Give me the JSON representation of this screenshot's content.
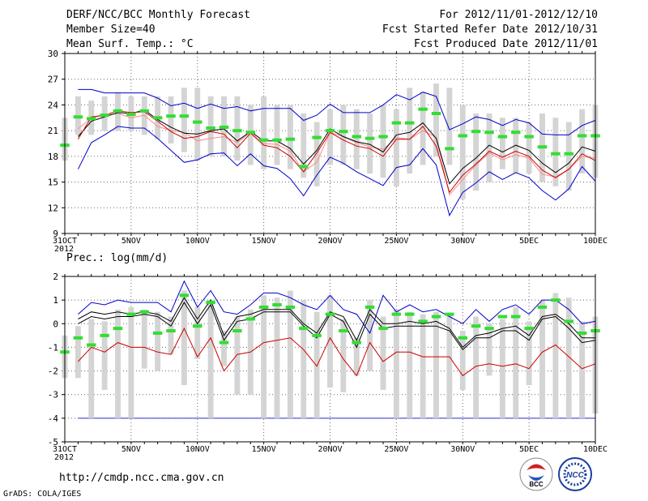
{
  "header": {
    "title": "DERF/NCC/BCC Monthly Forecast",
    "member_size": "Member Size=40",
    "variable": "Mean Surf. Temp.: °C",
    "period": "For 2012/11/01-2012/12/10",
    "fcst_started": "Fcst Started Refer Date 2012/10/31",
    "fcst_produced": "Fcst Produced Date 2012/11/01"
  },
  "footer": {
    "url": "http://cmdp.ncc.cma.gov.cn",
    "grads": "GrADS: COLA/IGES",
    "logo_bcc": "BCC",
    "logo_ncc": "NCC"
  },
  "colors": {
    "bar": "#d4d4d4",
    "mean": "#000000",
    "upper": "#0000cc",
    "lower": "#cc0000",
    "green": "#33dd33",
    "pink": "#ff8888"
  },
  "chart_data": [
    {
      "type": "line",
      "title": "Mean Surf. Temp.: °C",
      "ylim": [
        9,
        30
      ],
      "yticks": [
        9,
        12,
        15,
        18,
        21,
        24,
        27,
        30
      ],
      "xlabels": [
        {
          "i": 0,
          "text": "31OCT"
        },
        {
          "i": 5,
          "text": "5NOV"
        },
        {
          "i": 10,
          "text": "10NOV"
        },
        {
          "i": 15,
          "text": "15NOV"
        },
        {
          "i": 20,
          "text": "20NOV"
        },
        {
          "i": 25,
          "text": "25NOV"
        },
        {
          "i": 30,
          "text": "30NOV"
        },
        {
          "i": 35,
          "text": "5DEC"
        },
        {
          "i": 40,
          "text": "10DEC"
        }
      ],
      "year_label": "2012",
      "days": 41,
      "bars": [
        [
          17.5,
          22.5
        ],
        [
          20.5,
          25
        ],
        [
          20.5,
          24.5
        ],
        [
          21,
          25
        ],
        [
          21,
          25.5
        ],
        [
          21,
          25
        ],
        [
          20.5,
          25
        ],
        [
          20,
          25
        ],
        [
          19.5,
          25
        ],
        [
          18.5,
          26
        ],
        [
          17.5,
          26
        ],
        [
          18,
          25
        ],
        [
          18,
          25
        ],
        [
          17.5,
          25
        ],
        [
          17,
          24
        ],
        [
          16.5,
          25
        ],
        [
          17,
          24
        ],
        [
          16.5,
          24
        ],
        [
          15.5,
          23
        ],
        [
          14.5,
          22
        ],
        [
          17,
          23.5
        ],
        [
          17,
          24
        ],
        [
          16.5,
          23.5
        ],
        [
          16,
          23
        ],
        [
          15.5,
          24
        ],
        [
          14.5,
          23.5
        ],
        [
          16,
          26
        ],
        [
          17,
          25.5
        ],
        [
          18,
          26.5
        ],
        [
          17,
          26
        ],
        [
          13,
          24
        ],
        [
          14,
          23
        ],
        [
          15,
          23
        ],
        [
          16.5,
          22.5
        ],
        [
          16,
          22.5
        ],
        [
          16,
          22
        ],
        [
          15,
          23
        ],
        [
          14.5,
          22.5
        ],
        [
          14,
          22
        ],
        [
          16,
          23.5
        ],
        [
          15.5,
          24
        ]
      ],
      "series": [
        {
          "name": "upper",
          "values": [
            null,
            25.8,
            25.8,
            25.4,
            25.4,
            25.4,
            25.4,
            24.8,
            23.9,
            24.2,
            23.6,
            24.1,
            23.6,
            23.8,
            23.3,
            23.6,
            23.6,
            23.6,
            22.2,
            22.8,
            24.1,
            23.1,
            23.1,
            23.1,
            24.0,
            25.2,
            24.6,
            25.5,
            25.0,
            21.1,
            21.8,
            22.6,
            22.3,
            21.6,
            22.3,
            21.9,
            20.6,
            20.5,
            20.5,
            21.6,
            22.2
          ]
        },
        {
          "name": "pink",
          "values": [
            null,
            21.2,
            22.5,
            22.8,
            23.0,
            22.5,
            22.8,
            21.5,
            21.0,
            20.8,
            19.8,
            20.1,
            20.3,
            19.6,
            20.8,
            19.5,
            19.4,
            18.6,
            16.2,
            17.3,
            20.8,
            20.3,
            19.6,
            19.1,
            18.8,
            20.2,
            20.0,
            21.0,
            20.2,
            13.5,
            15.3,
            17.0,
            18.4,
            17.6,
            18.2,
            17.8,
            15.9,
            15.6,
            16.5,
            18.0,
            17.8
          ]
        },
        {
          "name": "mean",
          "values": [
            null,
            20.3,
            22.1,
            22.6,
            23.1,
            23.0,
            23.4,
            22.3,
            21.4,
            20.7,
            20.6,
            21.0,
            21.2,
            19.8,
            20.9,
            19.8,
            19.8,
            18.9,
            17.1,
            18.7,
            21.2,
            20.3,
            19.7,
            19.4,
            18.5,
            20.5,
            20.8,
            21.9,
            20.1,
            14.8,
            16.6,
            17.8,
            19.3,
            18.5,
            19.3,
            18.7,
            17.2,
            16.1,
            17.2,
            19.1,
            18.6
          ]
        },
        {
          "name": "red",
          "values": [
            null,
            20.0,
            22.6,
            22.8,
            23.3,
            23.1,
            23.2,
            22.1,
            20.9,
            20.1,
            20.3,
            20.9,
            20.6,
            19.0,
            20.7,
            19.3,
            19.0,
            18.0,
            16.2,
            18.4,
            20.8,
            19.9,
            19.2,
            18.9,
            18.0,
            20.0,
            20.0,
            21.5,
            19.2,
            13.8,
            15.8,
            17.1,
            18.6,
            17.9,
            18.6,
            18.0,
            16.4,
            15.5,
            16.5,
            18.3,
            17.5
          ]
        },
        {
          "name": "lower",
          "values": [
            null,
            16.5,
            19.6,
            20.5,
            21.5,
            21.3,
            21.3,
            20.1,
            18.7,
            17.3,
            17.6,
            18.3,
            18.4,
            16.9,
            18.3,
            16.9,
            16.6,
            15.4,
            13.4,
            15.8,
            17.9,
            17.2,
            16.2,
            15.4,
            14.6,
            16.7,
            17.0,
            18.9,
            17.0,
            11.1,
            13.8,
            14.9,
            16.2,
            15.3,
            16.1,
            15.5,
            14.0,
            12.9,
            14.2,
            16.8,
            15.1
          ]
        }
      ],
      "green": [
        19.3,
        22.6,
        22.4,
        22.8,
        23.3,
        22.9,
        23.3,
        22.5,
        22.7,
        22.7,
        22.0,
        21.3,
        21.4,
        21.0,
        20.8,
        19.9,
        19.9,
        20.0,
        16.8,
        20.2,
        21.0,
        20.9,
        20.3,
        20.1,
        20.3,
        21.9,
        21.9,
        23.5,
        23.0,
        18.9,
        20.4,
        20.9,
        20.8,
        20.3,
        20.8,
        20.3,
        19.1,
        18.3,
        18.3,
        20.4,
        20.4
      ]
    },
    {
      "type": "line",
      "title": "Prec.: log(mm/d)",
      "ylim": [
        -5,
        2
      ],
      "yticks": [
        -5,
        -4,
        -3,
        -2,
        -1,
        0,
        1,
        2
      ],
      "xlabels": [
        {
          "i": 0,
          "text": "31OCT"
        },
        {
          "i": 5,
          "text": "5NOV"
        },
        {
          "i": 10,
          "text": "10NOV"
        },
        {
          "i": 15,
          "text": "15NOV"
        },
        {
          "i": 20,
          "text": "20NOV"
        },
        {
          "i": 25,
          "text": "25NOV"
        },
        {
          "i": 30,
          "text": "30NOV"
        },
        {
          "i": 35,
          "text": "5DEC"
        },
        {
          "i": 40,
          "text": "10DEC"
        }
      ],
      "year_label": "2012",
      "days": 41,
      "floor": -4,
      "bars": [
        [
          -2.3,
          -0.5
        ],
        [
          -2.3,
          -0.1
        ],
        [
          -4,
          0.2
        ],
        [
          -2.8,
          0.1
        ],
        [
          -4,
          0.6
        ],
        [
          -4,
          0.7
        ],
        [
          -1.9,
          0.6
        ],
        [
          -2,
          0.5
        ],
        [
          -1.3,
          0.3
        ],
        [
          -2.6,
          1.4
        ],
        [
          -1.5,
          0.7
        ],
        [
          -4,
          1
        ],
        [
          -1.8,
          -0.3
        ],
        [
          -3,
          0.3
        ],
        [
          -3,
          0.6
        ],
        [
          -4,
          1.2
        ],
        [
          -4,
          1.1
        ],
        [
          -4,
          1.4
        ],
        [
          -4,
          1
        ],
        [
          -4,
          0.5
        ],
        [
          -2.7,
          1.2
        ],
        [
          -2.9,
          0.2
        ],
        [
          -2.2,
          -0.6
        ],
        [
          -2,
          1
        ],
        [
          -2.8,
          0.3
        ],
        [
          -4,
          0.6
        ],
        [
          -4,
          0.5
        ],
        [
          -4,
          0.4
        ],
        [
          -4,
          0.5
        ],
        [
          -4,
          0.4
        ],
        [
          -2.8,
          -0.3
        ],
        [
          -4,
          0.3
        ],
        [
          -2.2,
          0
        ],
        [
          -4,
          0.2
        ],
        [
          -4,
          0.7
        ],
        [
          -2.6,
          0.1
        ],
        [
          -4,
          1
        ],
        [
          -4,
          1.3
        ],
        [
          -4,
          1.1
        ],
        [
          -4,
          0.1
        ],
        [
          -3.8,
          0.3
        ]
      ],
      "series": [
        {
          "name": "upper",
          "values": [
            null,
            0.4,
            0.9,
            0.8,
            1.0,
            0.9,
            0.9,
            0.9,
            0.5,
            1.8,
            0.7,
            1.4,
            0.5,
            0.4,
            0.8,
            1.3,
            1.3,
            1.1,
            0.8,
            0.6,
            1.2,
            0.6,
            0.4,
            -0.4,
            1.2,
            0.5,
            0.8,
            0.5,
            0.6,
            0.3,
            0.0,
            0.6,
            0.1,
            0.6,
            0.8,
            0.4,
            1.0,
            1.0,
            0.6,
            0.0,
            0.1
          ]
        },
        {
          "name": "mean",
          "values": [
            null,
            0.2,
            0.5,
            0.4,
            0.5,
            0.4,
            0.5,
            0.4,
            0.1,
            1.1,
            0.2,
            1.0,
            -0.5,
            0.3,
            0.4,
            0.6,
            0.6,
            0.6,
            0.0,
            -0.4,
            0.5,
            0.3,
            -0.7,
            0.6,
            0.0,
            0.0,
            0.1,
            0.0,
            0.1,
            -0.2,
            -1.0,
            -0.5,
            -0.4,
            -0.2,
            -0.1,
            -0.5,
            0.3,
            0.4,
            0.0,
            -0.6,
            -0.6
          ]
        },
        {
          "name": "black2",
          "values": [
            null,
            0.0,
            0.3,
            0.2,
            0.3,
            0.3,
            0.4,
            0.3,
            -0.1,
            0.9,
            0.0,
            0.8,
            -0.7,
            0.1,
            0.2,
            0.5,
            0.5,
            0.5,
            -0.1,
            -0.6,
            0.4,
            0.1,
            -1.0,
            0.4,
            -0.2,
            -0.1,
            -0.1,
            -0.1,
            -0.1,
            -0.3,
            -1.1,
            -0.6,
            -0.6,
            -0.3,
            -0.3,
            -0.7,
            0.2,
            0.3,
            -0.2,
            -0.8,
            -0.7
          ]
        },
        {
          "name": "red",
          "values": [
            null,
            -1.6,
            -1.0,
            -1.2,
            -0.8,
            -1.0,
            -1.0,
            -1.2,
            -1.3,
            -0.2,
            -1.4,
            -0.6,
            -2.0,
            -1.3,
            -1.2,
            -0.8,
            -0.7,
            -0.6,
            -1.1,
            -1.8,
            -0.6,
            -1.5,
            -2.2,
            -0.8,
            -1.6,
            -1.2,
            -1.2,
            -1.4,
            -1.4,
            -1.4,
            -2.2,
            -1.8,
            -1.7,
            -1.8,
            -1.7,
            -1.9,
            -1.2,
            -0.9,
            -1.4,
            -1.9,
            -1.7
          ]
        }
      ],
      "green": [
        -1.2,
        -0.6,
        -0.9,
        -0.5,
        -0.2,
        0.4,
        0.5,
        -0.4,
        -0.3,
        1.2,
        -0.1,
        0.9,
        -0.8,
        -0.3,
        0.2,
        0.7,
        0.8,
        0.7,
        -0.2,
        -0.5,
        0.4,
        -0.3,
        -0.8,
        0.7,
        -0.2,
        0.4,
        0.4,
        0.1,
        0.3,
        0.4,
        -0.6,
        -0.1,
        -0.2,
        0.3,
        0.3,
        -0.2,
        0.7,
        1.0,
        0.1,
        -0.4,
        -0.3
      ]
    }
  ]
}
